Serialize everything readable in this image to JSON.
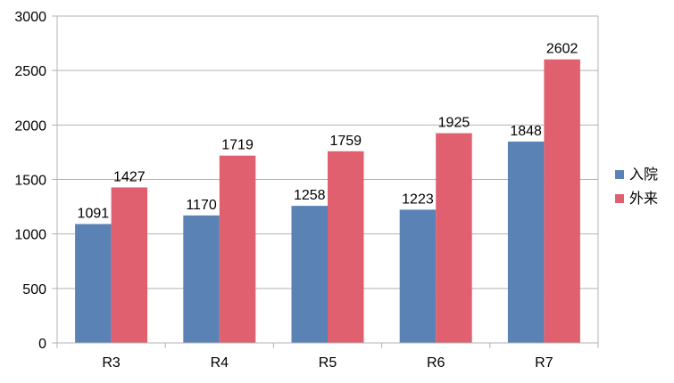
{
  "chart_data": {
    "type": "bar",
    "title": "",
    "xlabel": "",
    "ylabel": "",
    "categories": [
      "R3",
      "R4",
      "R5",
      "R6",
      "R7"
    ],
    "series": [
      {
        "name": "入院",
        "color": "#5a82b4",
        "values": [
          1091,
          1170,
          1258,
          1223,
          1848
        ]
      },
      {
        "name": "外来",
        "color": "#e06070",
        "values": [
          1427,
          1719,
          1759,
          1925,
          2602
        ]
      }
    ],
    "ylim": [
      0,
      3000
    ],
    "yticks": [
      0,
      500,
      1000,
      1500,
      2000,
      2500,
      3000
    ],
    "grid": true,
    "legend": "right",
    "data_labels": true
  }
}
